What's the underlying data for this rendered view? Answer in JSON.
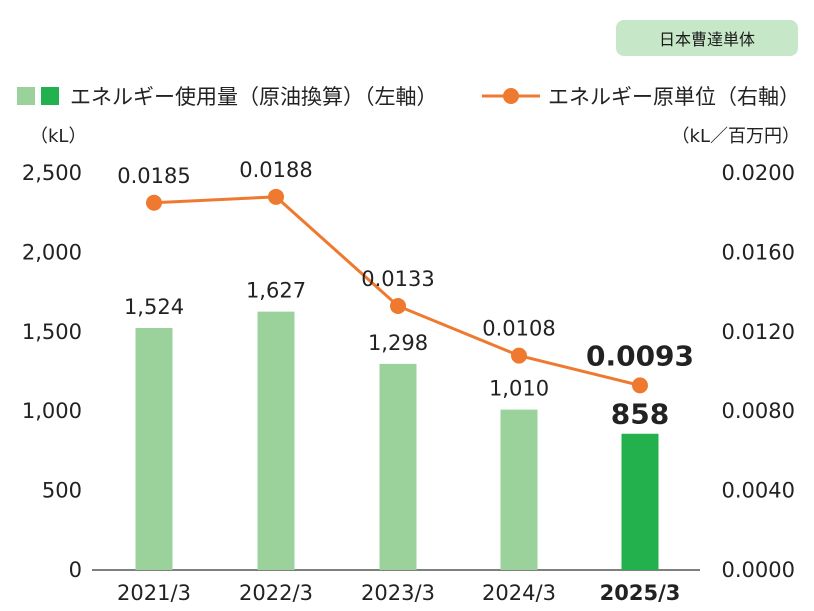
{
  "badge": {
    "label": "日本曹達単体"
  },
  "colors": {
    "bar_light": "#9bd29b",
    "bar_highlight": "#22b14c",
    "line": "#ef7a2f",
    "badge_bg": "#c6e7c8",
    "axis": "#555555"
  },
  "chart_data": {
    "type": "bar",
    "categories": [
      "2021/3",
      "2022/3",
      "2023/3",
      "2024/3",
      "2025/3"
    ],
    "highlight_index": 4,
    "series": [
      {
        "name": "エネルギー使用量（原油換算）（左軸）",
        "type": "bar",
        "axis": "left",
        "values": [
          1524,
          1627,
          1298,
          1010,
          858
        ],
        "labels": [
          "1,524",
          "1,627",
          "1,298",
          "1,010",
          "858"
        ]
      },
      {
        "name": "エネルギー原単位（右軸）",
        "type": "line",
        "axis": "right",
        "values": [
          0.0185,
          0.0188,
          0.0133,
          0.0108,
          0.0093
        ],
        "labels": [
          "0.0185",
          "0.0188",
          "0.0133",
          "0.0108",
          "0.0093"
        ]
      }
    ],
    "left_axis": {
      "unit": "（kL）",
      "range": [
        0,
        2500
      ],
      "ticks": [
        "0",
        "500",
        "1,000",
        "1,500",
        "2,000",
        "2,500"
      ]
    },
    "right_axis": {
      "unit": "（kL／百万円）",
      "range": [
        0,
        0.02
      ],
      "ticks": [
        "0.0000",
        "0.0040",
        "0.0080",
        "0.0120",
        "0.0160",
        "0.0200"
      ]
    },
    "legend": {
      "position": "top-left",
      "bar_label": "エネルギー使用量（原油換算）（左軸）",
      "line_label": "エネルギー原単位（右軸）"
    }
  }
}
